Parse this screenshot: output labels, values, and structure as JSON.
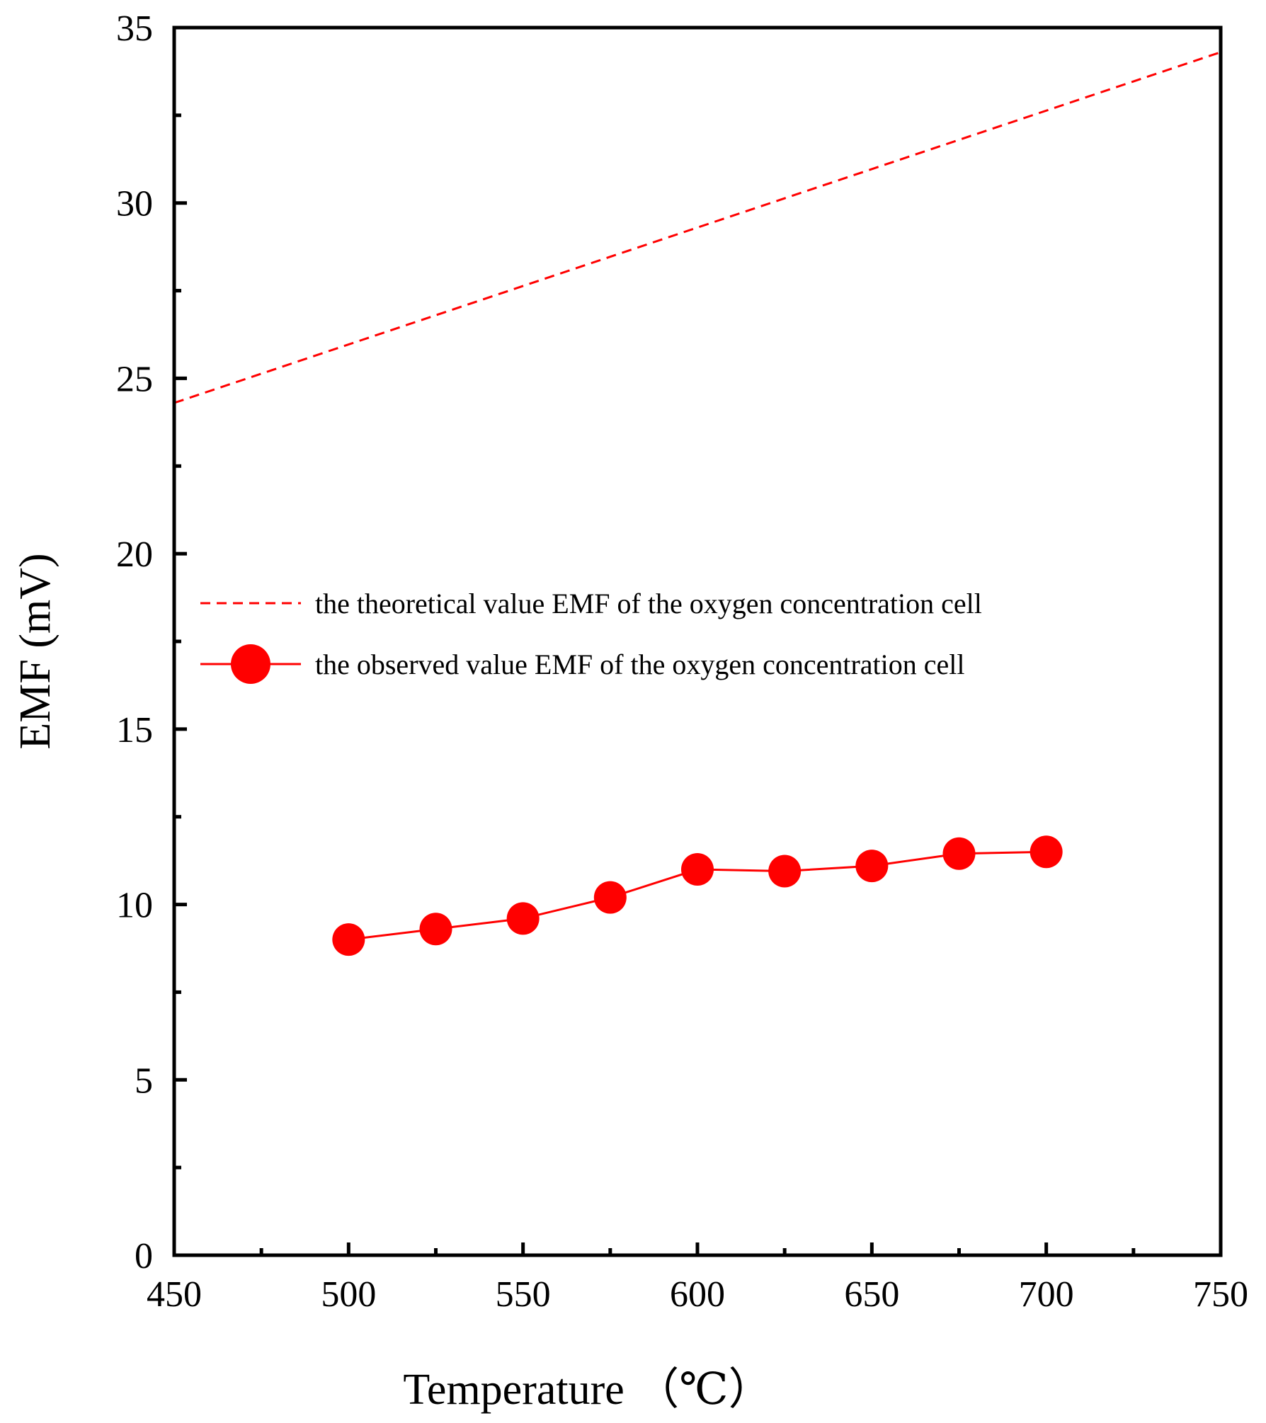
{
  "chart_data": {
    "type": "line",
    "title": "",
    "xlabel": "Temperature （℃）",
    "ylabel": "EMF (mV)",
    "xlim": [
      450,
      750
    ],
    "ylim": [
      0,
      35
    ],
    "x_ticks": [
      450,
      500,
      550,
      600,
      650,
      700,
      750
    ],
    "y_ticks": [
      0,
      5,
      10,
      15,
      20,
      25,
      30,
      35
    ],
    "grid": false,
    "legend_position": "center-right",
    "series": [
      {
        "name": "the theoretical value EMF of the oxygen concentration cell",
        "style": "dashed",
        "color": "#ff0000",
        "x": [
          450,
          750
        ],
        "y": [
          24.3,
          34.3
        ]
      },
      {
        "name": "the observed value EMF of the oxygen concentration cell",
        "style": "solid-with-circles",
        "color": "#ff0000",
        "x": [
          500,
          525,
          550,
          575,
          600,
          625,
          650,
          675,
          700
        ],
        "y": [
          9.0,
          9.3,
          9.6,
          10.2,
          11.0,
          10.95,
          11.1,
          11.45,
          11.5
        ]
      }
    ]
  }
}
